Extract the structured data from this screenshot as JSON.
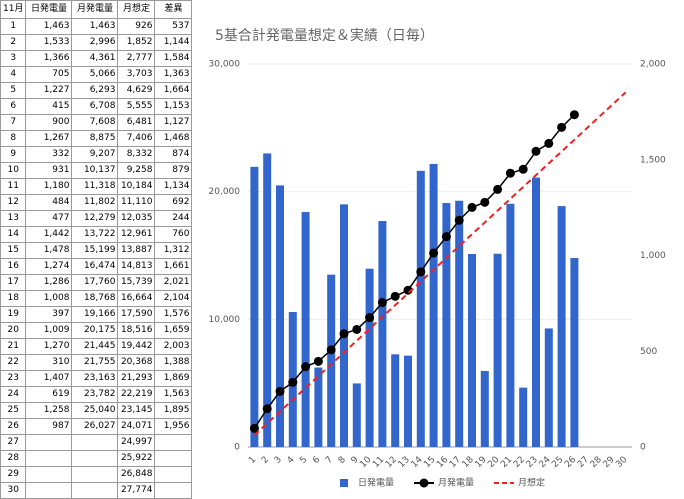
{
  "table": {
    "headers": [
      "11月",
      "日発電量",
      "月発電量",
      "月想定",
      "差異"
    ],
    "rows": [
      [
        "1",
        "1,463",
        "1,463",
        "926",
        "537"
      ],
      [
        "2",
        "1,533",
        "2,996",
        "1,852",
        "1,144"
      ],
      [
        "3",
        "1,366",
        "4,361",
        "2,777",
        "1,584"
      ],
      [
        "4",
        "705",
        "5,066",
        "3,703",
        "1,363"
      ],
      [
        "5",
        "1,227",
        "6,293",
        "4,629",
        "1,664"
      ],
      [
        "6",
        "415",
        "6,708",
        "5,555",
        "1,153"
      ],
      [
        "7",
        "900",
        "7,608",
        "6,481",
        "1,127"
      ],
      [
        "8",
        "1,267",
        "8,875",
        "7,406",
        "1,468"
      ],
      [
        "9",
        "332",
        "9,207",
        "8,332",
        "874"
      ],
      [
        "10",
        "931",
        "10,137",
        "9,258",
        "879"
      ],
      [
        "11",
        "1,180",
        "11,318",
        "10,184",
        "1,134"
      ],
      [
        "12",
        "484",
        "11,802",
        "11,110",
        "692"
      ],
      [
        "13",
        "477",
        "12,279",
        "12,035",
        "244"
      ],
      [
        "14",
        "1,442",
        "13,722",
        "12,961",
        "760"
      ],
      [
        "15",
        "1,478",
        "15,199",
        "13,887",
        "1,312"
      ],
      [
        "16",
        "1,274",
        "16,474",
        "14,813",
        "1,661"
      ],
      [
        "17",
        "1,286",
        "17,760",
        "15,739",
        "2,021"
      ],
      [
        "18",
        "1,008",
        "18,768",
        "16,664",
        "2,104"
      ],
      [
        "19",
        "397",
        "19,166",
        "17,590",
        "1,576"
      ],
      [
        "20",
        "1,009",
        "20,175",
        "18,516",
        "1,659"
      ],
      [
        "21",
        "1,270",
        "21,445",
        "19,442",
        "2,003"
      ],
      [
        "22",
        "310",
        "21,755",
        "20,368",
        "1,388"
      ],
      [
        "23",
        "1,407",
        "23,163",
        "21,293",
        "1,869"
      ],
      [
        "24",
        "619",
        "23,782",
        "22,219",
        "1,563"
      ],
      [
        "25",
        "1,258",
        "25,040",
        "23,145",
        "1,895"
      ],
      [
        "26",
        "987",
        "26,027",
        "24,071",
        "1,956"
      ],
      [
        "27",
        null,
        null,
        "24,997",
        null
      ],
      [
        "28",
        null,
        null,
        "25,922",
        null
      ],
      [
        "29",
        null,
        null,
        "26,848",
        null
      ],
      [
        "30",
        null,
        null,
        "27,774",
        null
      ]
    ]
  },
  "chart_data": {
    "type": "bar",
    "title": "5基合計発電量想定＆実績（日毎）",
    "categories": [
      1,
      2,
      3,
      4,
      5,
      6,
      7,
      8,
      9,
      10,
      11,
      12,
      13,
      14,
      15,
      16,
      17,
      18,
      19,
      20,
      21,
      22,
      23,
      24,
      25,
      26,
      27,
      28,
      29,
      30
    ],
    "series": [
      {
        "name": "日発電量",
        "type": "bar",
        "axis": "y2",
        "color": "#3366cc",
        "values": [
          1463,
          1533,
          1366,
          705,
          1227,
          415,
          900,
          1267,
          332,
          931,
          1180,
          484,
          477,
          1442,
          1478,
          1274,
          1286,
          1008,
          397,
          1009,
          1270,
          310,
          1407,
          619,
          1258,
          987,
          null,
          null,
          null,
          null
        ]
      },
      {
        "name": "月発電量",
        "type": "line",
        "axis": "y",
        "color": "#000000",
        "marker": "circle",
        "values": [
          1463,
          2996,
          4361,
          5066,
          6293,
          6708,
          7608,
          8875,
          9207,
          10137,
          11318,
          11802,
          12279,
          13722,
          15199,
          16474,
          17760,
          18768,
          19166,
          20175,
          21445,
          21755,
          23163,
          23782,
          25040,
          26027,
          null,
          null,
          null,
          null
        ]
      },
      {
        "name": "月想定",
        "type": "line",
        "axis": "y",
        "color": "#ee2222",
        "dash": true,
        "values": [
          926,
          1852,
          2777,
          3703,
          4629,
          5555,
          6481,
          7406,
          8332,
          9258,
          10184,
          11110,
          12035,
          12961,
          13887,
          14813,
          15739,
          16664,
          17590,
          18516,
          19442,
          20368,
          21293,
          22219,
          23145,
          24071,
          24997,
          25922,
          26848,
          27774
        ]
      }
    ],
    "ylim": [
      0,
      30000
    ],
    "yticks": [
      0,
      {
        "value": 10000,
        "label": "10,000"
      },
      {
        "value": 20000,
        "label": "20,000"
      },
      {
        "value": 30000,
        "label": "30,000"
      }
    ],
    "y2lim": [
      0,
      2000
    ],
    "y2ticks": [
      0,
      500,
      {
        "value": 1000,
        "label": "1,000"
      },
      {
        "value": 1500,
        "label": "1,500"
      },
      {
        "value": 2000,
        "label": "2,000"
      }
    ],
    "grid": true,
    "legend": "bottom"
  }
}
